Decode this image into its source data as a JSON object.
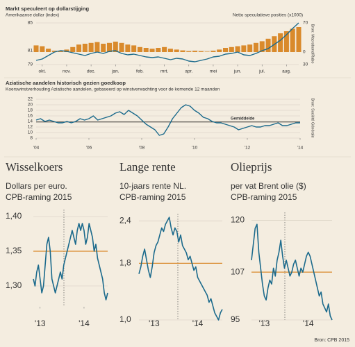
{
  "chart_data": [
    {
      "type": "combo",
      "title": "Markt speculeert op dollarstijging",
      "subtitle": "Amerikaanse dollar (index)",
      "y2label": "Netto speculatieve posities (x1000)",
      "source": "Bron: Macrobond/Rabo",
      "xlim": [
        0,
        43
      ],
      "xticks": [
        {
          "value": 1,
          "label": "okt."
        },
        {
          "value": 5,
          "label": "nov."
        },
        {
          "value": 9,
          "label": "dec."
        },
        {
          "value": 13,
          "label": "jan."
        },
        {
          "value": 17,
          "label": "feb."
        },
        {
          "value": 21,
          "label": "mrt."
        },
        {
          "value": 25,
          "label": "apr."
        },
        {
          "value": 29,
          "label": "mei"
        },
        {
          "value": 33,
          "label": "jun."
        },
        {
          "value": 37,
          "label": "jul."
        },
        {
          "value": 41,
          "label": "aug."
        }
      ],
      "ylim": [
        79,
        85
      ],
      "yticks": [
        79,
        81,
        85
      ],
      "y2lim": [
        -30,
        70
      ],
      "y2ticks": [
        {
          "value": -30,
          "label": "30"
        },
        0,
        70
      ],
      "grid": true,
      "series": [
        {
          "type": "bar",
          "axis": "y2",
          "color": "#d98a2c",
          "values": [
            16,
            14,
            8,
            3,
            2,
            6,
            12,
            18,
            20,
            22,
            24,
            20,
            22,
            25,
            22,
            18,
            16,
            12,
            10,
            8,
            10,
            12,
            8,
            6,
            4,
            2,
            3,
            2,
            1,
            3,
            6,
            10,
            12,
            14,
            16,
            18,
            22,
            26,
            32,
            38,
            45,
            50,
            56,
            60
          ]
        },
        {
          "type": "line",
          "color": "#1b6a8c",
          "values": [
            79.6,
            79.8,
            80.3,
            80.8,
            81.0,
            80.9,
            80.7,
            80.5,
            80.3,
            80.6,
            80.8,
            80.6,
            80.9,
            81.0,
            80.6,
            80.4,
            80.5,
            80.3,
            80.1,
            80.0,
            80.1,
            79.9,
            79.7,
            79.9,
            79.8,
            79.5,
            79.4,
            79.6,
            79.8,
            80.1,
            80.2,
            80.5,
            80.6,
            80.8,
            80.4,
            80.3,
            80.6,
            81.0,
            81.3,
            81.9,
            82.5,
            83.3,
            84.2,
            85.0
          ]
        }
      ]
    },
    {
      "type": "line",
      "title": "Aziatische aandelen historisch gezien goedkoop",
      "subtitle": "Koerswinstverhouding Aziatische aandelen, gebaseerd op winstverwachting voor de komende 12 maanden",
      "source": "Bron: Société Générale",
      "xlim": [
        0,
        60
      ],
      "xticks": [
        {
          "value": 0,
          "label": "'04"
        },
        {
          "value": 12,
          "label": "'06"
        },
        {
          "value": 24,
          "label": "'08"
        },
        {
          "value": 36,
          "label": "'10"
        },
        {
          "value": 48,
          "label": "'12"
        },
        {
          "value": 60,
          "label": "'14"
        }
      ],
      "ylim": [
        8,
        22
      ],
      "yticks": [
        8,
        10,
        12,
        14,
        16,
        18,
        20,
        22
      ],
      "grid": true,
      "reference": {
        "label": "Gemiddelde",
        "value": 13.8,
        "color": "#222222"
      },
      "series": [
        {
          "color": "#1b6a8c",
          "values": [
            14.5,
            15,
            14,
            14.5,
            14,
            13.5,
            13.5,
            14,
            13.5,
            14,
            15,
            14.5,
            15,
            16,
            14.5,
            15,
            15.5,
            16,
            17,
            17.5,
            16.5,
            18,
            17,
            16,
            14.5,
            13,
            12,
            11,
            9,
            9.5,
            12,
            15,
            17,
            19,
            20,
            19.5,
            18,
            17,
            15.5,
            15,
            14,
            13.5,
            13.5,
            13,
            12.5,
            12,
            11,
            11.5,
            12,
            12.5,
            12,
            12,
            12.5,
            12.5,
            13,
            13.5,
            12.5,
            12.5,
            13,
            13.5,
            13.5
          ]
        }
      ]
    },
    {
      "type": "line",
      "title": "Wisselkoers",
      "subtitle": "Dollars per euro.",
      "xlim": [
        0,
        44
      ],
      "xticks": [
        {
          "value": 4,
          "label": "'13"
        },
        {
          "value": 30,
          "label": "'14"
        }
      ],
      "ylim": [
        1.27,
        1.41
      ],
      "yticks": [
        {
          "value": 1.3,
          "label": "1,30"
        },
        {
          "value": 1.35,
          "label": "1,35"
        },
        {
          "value": 1.4,
          "label": "1,40"
        }
      ],
      "grid": true,
      "reference": {
        "label": "CPB-raming 2015",
        "value": 1.35,
        "color": "#d98a2c"
      },
      "series": [
        {
          "color": "#1b6a8c",
          "values": [
            1.31,
            1.3,
            1.32,
            1.33,
            1.31,
            1.29,
            1.3,
            1.33,
            1.36,
            1.37,
            1.35,
            1.31,
            1.3,
            1.29,
            1.3,
            1.31,
            1.32,
            1.31,
            1.33,
            1.34,
            1.35,
            1.36,
            1.37,
            1.38,
            1.37,
            1.36,
            1.38,
            1.39,
            1.38,
            1.39,
            1.38,
            1.36,
            1.37,
            1.39,
            1.38,
            1.37,
            1.35,
            1.36,
            1.34,
            1.33,
            1.32,
            1.31,
            1.29,
            1.28,
            1.29
          ]
        }
      ]
    },
    {
      "type": "line",
      "title": "Lange rente",
      "subtitle": "10-jaars rente NL.",
      "xlim": [
        0,
        44
      ],
      "xticks": [
        {
          "value": 8,
          "label": "'13"
        },
        {
          "value": 31,
          "label": "'14"
        }
      ],
      "ylim": [
        1.0,
        2.5
      ],
      "yticks": [
        {
          "value": 1.0,
          "label": "1,0"
        },
        {
          "value": 1.8,
          "label": "1,8"
        },
        {
          "value": 2.4,
          "label": "2,4"
        }
      ],
      "grid": true,
      "reference": {
        "label": "CPB-raming 2015",
        "value": 1.8,
        "color": "#d98a2c"
      },
      "series": [
        {
          "color": "#1b6a8c",
          "values": [
            1.65,
            1.75,
            1.9,
            2.0,
            1.85,
            1.7,
            1.6,
            1.75,
            1.95,
            2.05,
            2.1,
            2.2,
            2.3,
            2.25,
            2.35,
            2.4,
            2.45,
            2.3,
            2.2,
            2.3,
            2.25,
            2.1,
            2.2,
            2.05,
            2.0,
            1.95,
            1.85,
            1.9,
            1.8,
            1.7,
            1.75,
            1.6,
            1.55,
            1.5,
            1.45,
            1.4,
            1.35,
            1.25,
            1.3,
            1.2,
            1.1,
            1.05,
            1.0,
            1.1,
            1.15
          ]
        }
      ]
    },
    {
      "type": "line",
      "title": "Olieprijs",
      "subtitle": "per vat Brent olie ($)",
      "xlim": [
        0,
        44
      ],
      "xticks": [
        {
          "value": 7,
          "label": "'13"
        },
        {
          "value": 31,
          "label": "'14"
        }
      ],
      "ylim": [
        95,
        122
      ],
      "yticks": [
        95,
        107,
        120
      ],
      "grid": true,
      "reference": {
        "label": "CPB-raming 2015",
        "value": 107,
        "color": "#d98a2c"
      },
      "series": [
        {
          "color": "#1b6a8c",
          "values": [
            110,
            114,
            118,
            119,
            112,
            108,
            104,
            101,
            100,
            103,
            105,
            104,
            108,
            106,
            110,
            112,
            115,
            111,
            108,
            110,
            108,
            106,
            107,
            109,
            110,
            108,
            106,
            108,
            107,
            109,
            111,
            112,
            111,
            109,
            107,
            105,
            103,
            101,
            102,
            99,
            98,
            97,
            99,
            96,
            95
          ]
        }
      ]
    }
  ],
  "source": "Bron: CPB 2015"
}
